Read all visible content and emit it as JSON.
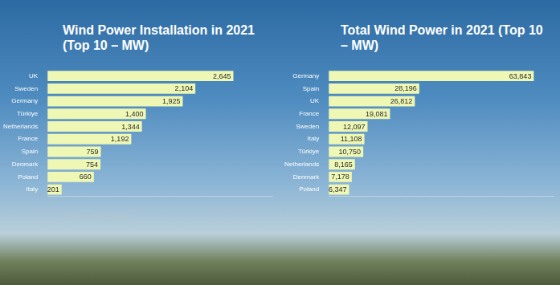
{
  "chart_data": [
    {
      "type": "bar",
      "title": "Wind Power Installation in 2021 (Top 10 – MW)",
      "orientation": "horizontal",
      "categories": [
        "UK",
        "Sweden",
        "Germany",
        "Türkiye",
        "Netherlands",
        "France",
        "Spain",
        "Denmark",
        "Poland",
        "Italy"
      ],
      "values": [
        2645,
        2104,
        1925,
        1400,
        1344,
        1192,
        759,
        754,
        660,
        201
      ],
      "value_labels": [
        "2,645",
        "2,104",
        "1,925",
        "1,400",
        "1,344",
        "1,192",
        "759",
        "754",
        "660",
        "201"
      ],
      "data_labels": true,
      "color": "#eef7b4",
      "xlim": [
        0,
        3200
      ],
      "grid": false,
      "tick_labels": "y",
      "annotations": [
        "Source: WindEurope"
      ]
    },
    {
      "type": "bar",
      "title": "Total Wind Power in 2021 (Top 10 – MW)",
      "orientation": "horizontal",
      "categories": [
        "Germany",
        "Spain",
        "UK",
        "France",
        "Sweden",
        "Italy",
        "Türkiye",
        "Netherlands",
        "Denmark",
        "Poland"
      ],
      "values": [
        63843,
        28196,
        26812,
        19081,
        12097,
        11108,
        10750,
        8165,
        7178,
        6347
      ],
      "value_labels": [
        "63,843",
        "28,196",
        "26,812",
        "19,081",
        "12,097",
        "11,108",
        "10,750",
        "8,165",
        "7,178",
        "6,347"
      ],
      "data_labels": true,
      "color": "#eef7b4",
      "xlim": [
        0,
        70000
      ],
      "grid": false,
      "tick_labels": "y"
    }
  ]
}
